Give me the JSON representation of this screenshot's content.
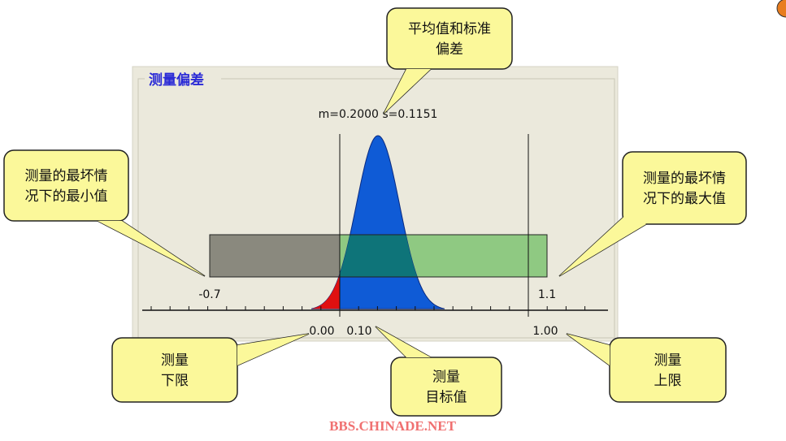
{
  "panel": {
    "title": "测量偏差",
    "stats": "m=0.2000 s=0.1151",
    "labels": {
      "worst_min": "-0.7",
      "worst_max": "1.1",
      "lower": "0.00",
      "target": "0.10",
      "upper": "1.00"
    }
  },
  "callouts": [
    {
      "lines": [
        "平均值和标准",
        "偏差"
      ]
    },
    {
      "lines": [
        "测量的最坏情",
        "况下的最小值"
      ]
    },
    {
      "lines": [
        "测量的最坏情",
        "况下的最大值"
      ]
    },
    {
      "lines": [
        "测量",
        "下限"
      ]
    },
    {
      "lines": [
        "测量",
        "目标值"
      ]
    },
    {
      "lines": [
        "测量",
        "上限"
      ]
    }
  ],
  "watermark": "BBS.CHINADE.NET"
}
